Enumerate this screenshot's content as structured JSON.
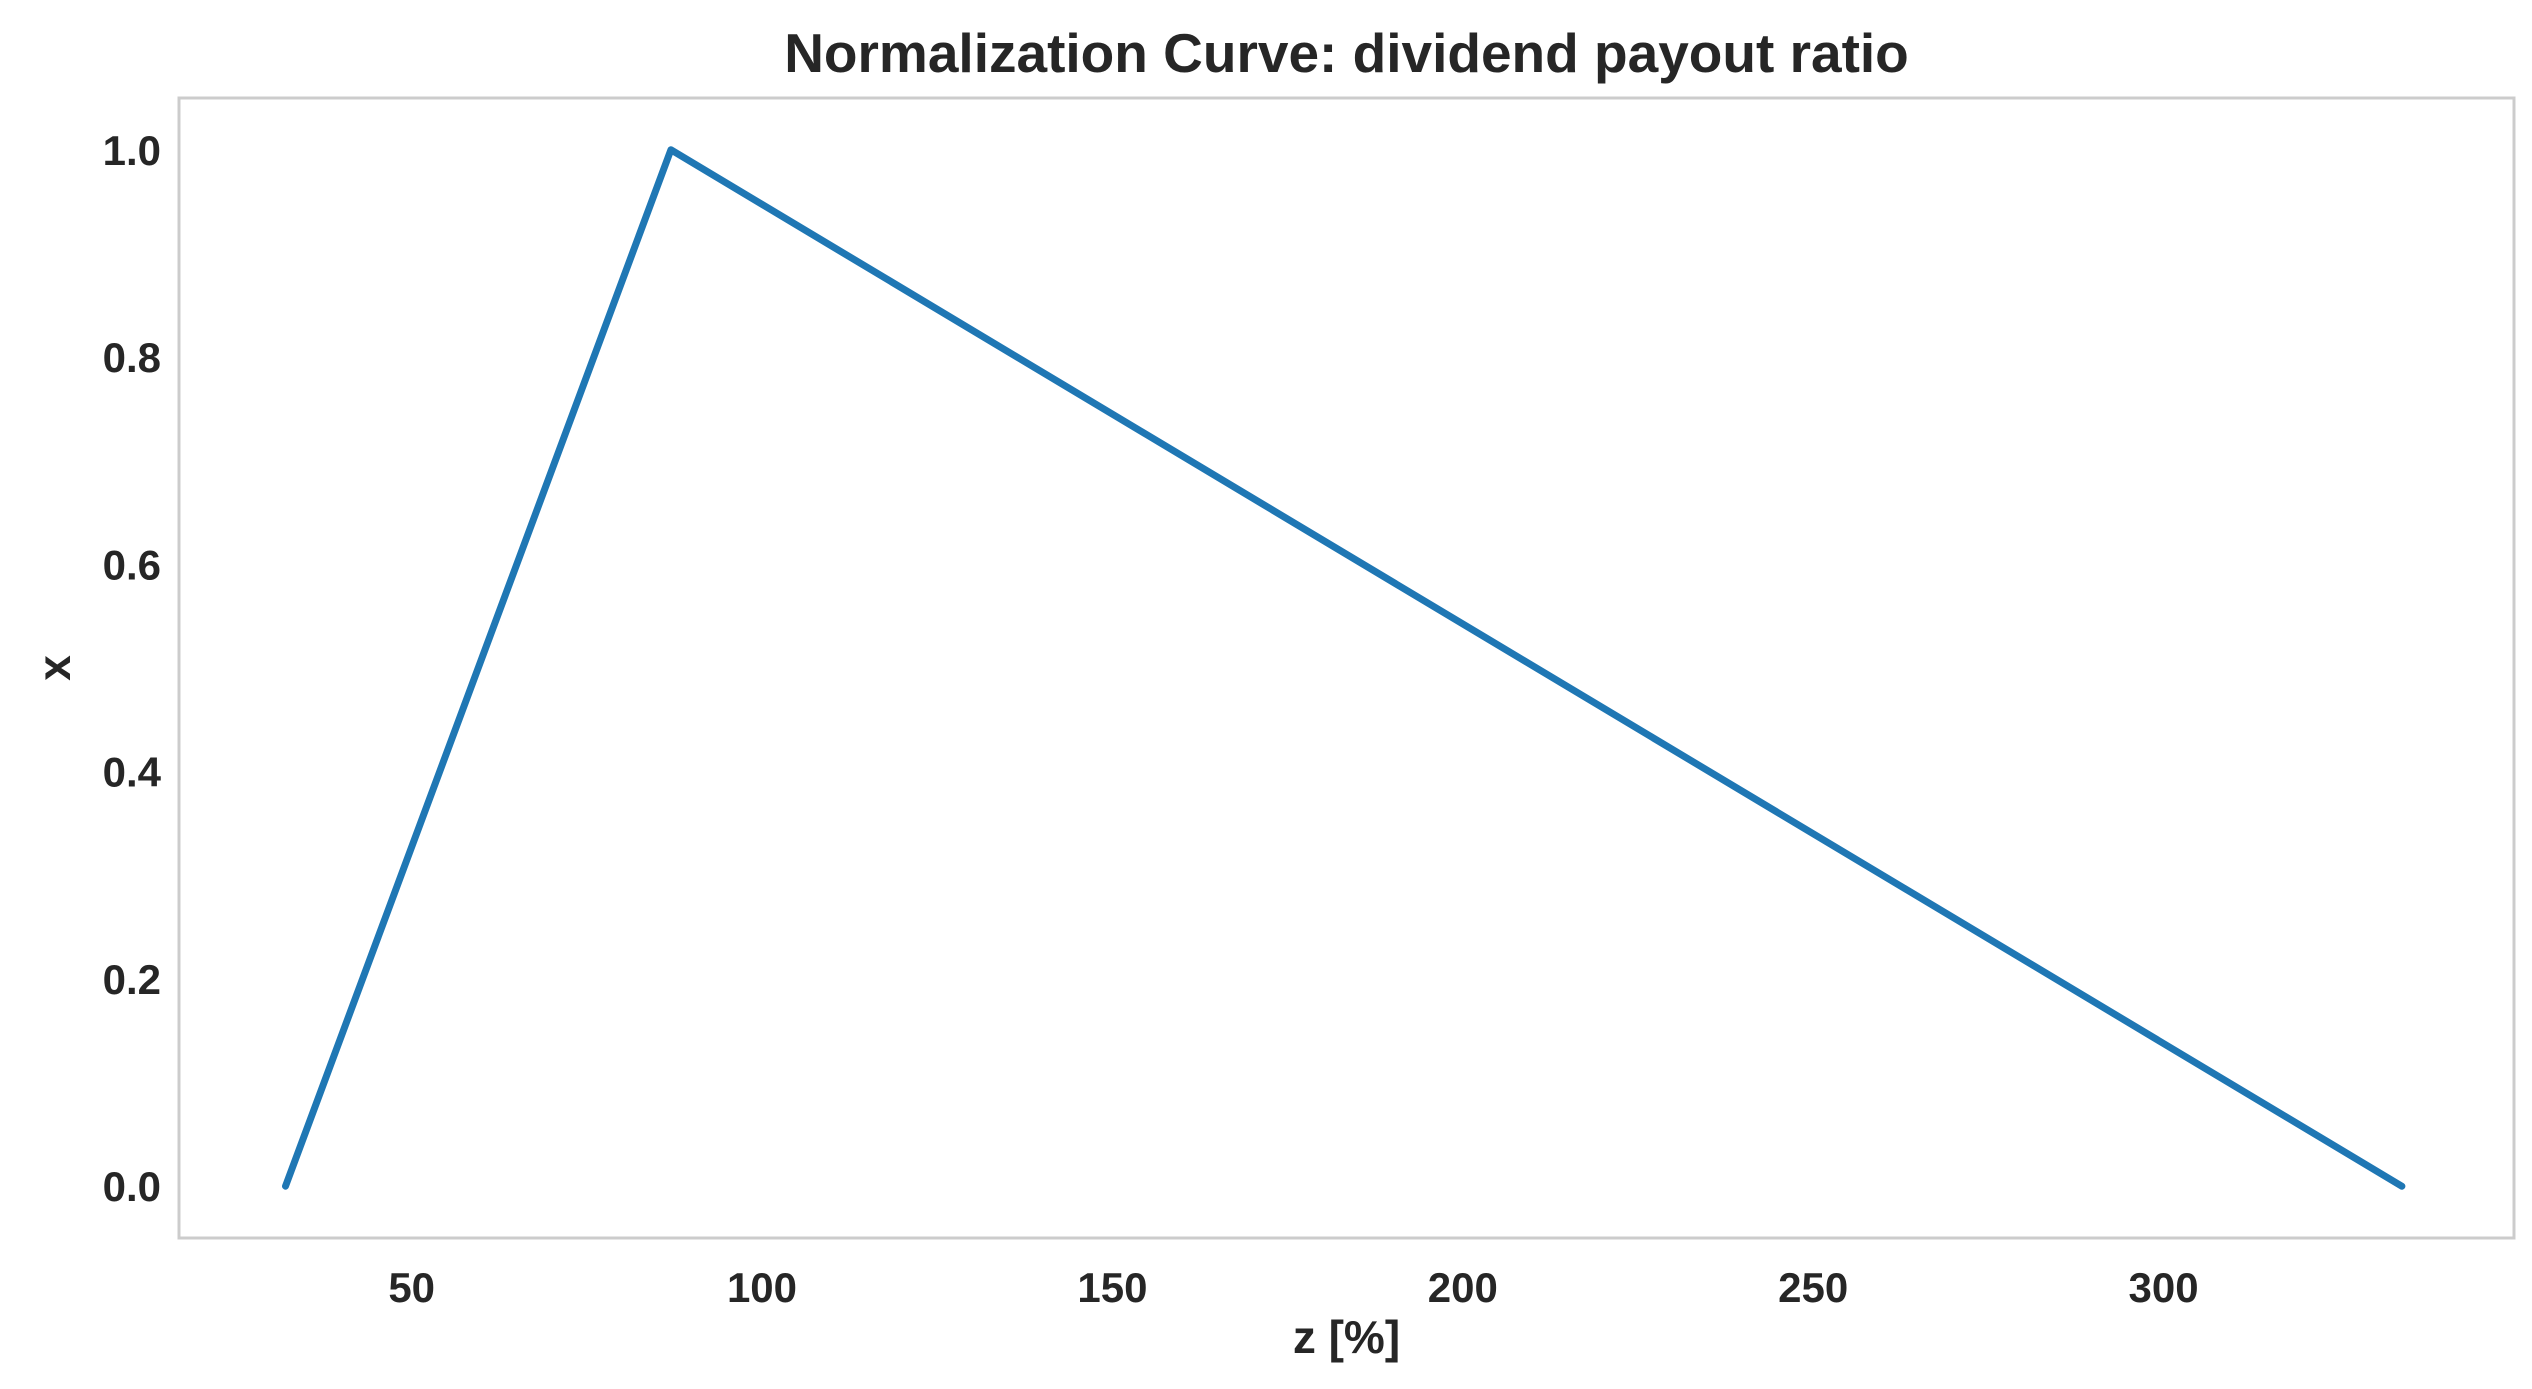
{
  "chart_data": {
    "type": "line",
    "title": "Normalization Curve: dividend payout ratio",
    "xlabel": "z [%]",
    "ylabel": "x",
    "xlim": [
      16.8,
      350.0
    ],
    "ylim": [
      -0.05,
      1.05
    ],
    "x_ticks": [
      50,
      100,
      150,
      200,
      250,
      300
    ],
    "y_ticks": [
      0.0,
      0.2,
      0.4,
      0.6,
      0.8,
      1.0
    ],
    "grid": false,
    "series": [
      {
        "color": "#1f77b4",
        "x": [
          32,
          87,
          334
        ],
        "y": [
          0.0,
          1.0,
          0.0
        ]
      }
    ]
  },
  "colors": {
    "text": "#262626",
    "frame": "#cccccc",
    "background": "#ffffff"
  }
}
